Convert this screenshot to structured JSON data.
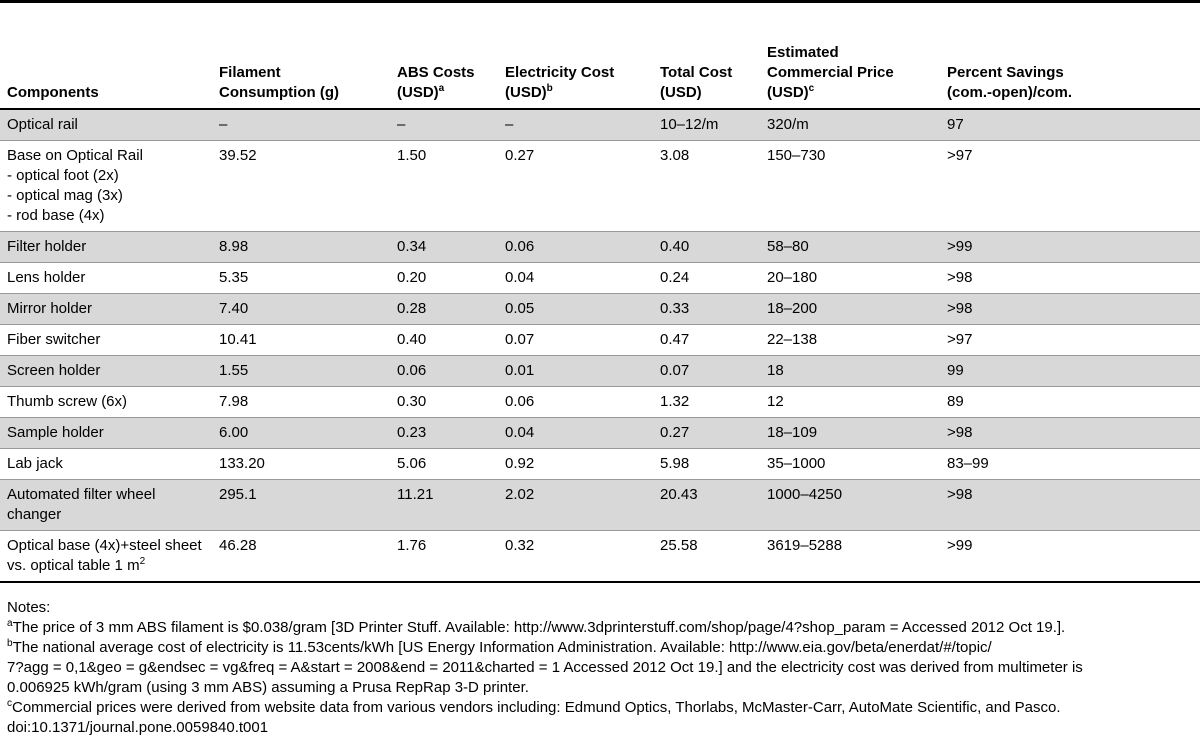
{
  "table": {
    "headers": {
      "components": "Components",
      "filament_l1": "Filament",
      "filament_l2": "Consumption (g)",
      "abs_l1": "ABS Costs",
      "abs_l2": "(USD)",
      "abs_sup": "a",
      "elec_l1": "Electricity Cost",
      "elec_l2": "(USD)",
      "elec_sup": "b",
      "total_l1": "Total Cost",
      "total_l2": "(USD)",
      "comm_l1": "Estimated",
      "comm_l2": "Commercial Price",
      "comm_l3": "(USD)",
      "comm_sup": "c",
      "savings_l1": "Percent Savings",
      "savings_l2": "(com.-open)/com."
    },
    "rows": [
      {
        "component": "Optical rail",
        "filament": "–",
        "abs": "–",
        "electricity": "–",
        "total": "10–12/m",
        "commercial": "320/m",
        "savings": "97"
      },
      {
        "component": "Base on Optical Rail",
        "sub": [
          "- optical foot (2x)",
          "- optical mag (3x)",
          "- rod base (4x)"
        ],
        "filament": "39.52",
        "abs": "1.50",
        "electricity": "0.27",
        "total": "3.08",
        "commercial": "150–730",
        "savings": ">97"
      },
      {
        "component": "Filter holder",
        "filament": "8.98",
        "abs": "0.34",
        "electricity": "0.06",
        "total": "0.40",
        "commercial": "58–80",
        "savings": ">99"
      },
      {
        "component": "Lens holder",
        "filament": "5.35",
        "abs": "0.20",
        "electricity": "0.04",
        "total": "0.24",
        "commercial": "20–180",
        "savings": ">98"
      },
      {
        "component": "Mirror holder",
        "filament": "7.40",
        "abs": "0.28",
        "electricity": "0.05",
        "total": "0.33",
        "commercial": "18–200",
        "savings": ">98"
      },
      {
        "component": "Fiber switcher",
        "filament": "10.41",
        "abs": "0.40",
        "electricity": "0.07",
        "total": "0.47",
        "commercial": "22–138",
        "savings": ">97"
      },
      {
        "component": "Screen holder",
        "filament": "1.55",
        "abs": "0.06",
        "electricity": "0.01",
        "total": "0.07",
        "commercial": "18",
        "savings": "99"
      },
      {
        "component": "Thumb screw (6x)",
        "filament": "7.98",
        "abs": "0.30",
        "electricity": "0.06",
        "total": "1.32",
        "commercial": "12",
        "savings": "89"
      },
      {
        "component": "Sample holder",
        "filament": "6.00",
        "abs": "0.23",
        "electricity": "0.04",
        "total": "0.27",
        "commercial": "18–109",
        "savings": ">98"
      },
      {
        "component": "Lab jack",
        "filament": "133.20",
        "abs": "5.06",
        "electricity": "0.92",
        "total": "5.98",
        "commercial": "35–1000",
        "savings": "83–99"
      },
      {
        "component": "Automated filter wheel",
        "sub": [
          "changer"
        ],
        "filament": "295.1",
        "abs": "11.21",
        "electricity": "2.02",
        "total": "20.43",
        "commercial": "1000–4250",
        "savings": ">98"
      },
      {
        "component": "Optical base (4x)+steel sheet",
        "sub": [
          "vs. optical table 1 m"
        ],
        "sub_sup": "2",
        "filament": "46.28",
        "abs": "1.76",
        "electricity": "0.32",
        "total": "25.58",
        "commercial": "3619–5288",
        "savings": ">99"
      }
    ]
  },
  "notes": {
    "title": "Notes:",
    "a_sup": "a",
    "a_text": "The price of 3 mm ABS filament is $0.038/gram [3D Printer Stuff. Available: http://www.3dprinterstuff.com/shop/page/4?shop_param = Accessed 2012 Oct 19.].",
    "b_sup": "b",
    "b_text1": "The national average cost of electricity is 11.53cents/kWh [US Energy Information Administration. Available: http://www.eia.gov/beta/enerdat/#/topic/",
    "b_text2": "7?agg = 0,1&geo = g&endsec = vg&freq = A&start = 2008&end = 2011&charted = 1 Accessed 2012 Oct 19.] and the electricity cost was derived from multimeter is",
    "b_text3": "0.006925 kWh/gram (using 3 mm ABS) assuming a Prusa RepRap 3-D printer.",
    "c_sup": "c",
    "c_text": "Commercial prices were derived from website data from various vendors including: Edmund Optics, Thorlabs, McMaster-Carr, AutoMate Scientific, and Pasco.",
    "doi": "doi:10.1371/journal.pone.0059840.t001"
  }
}
